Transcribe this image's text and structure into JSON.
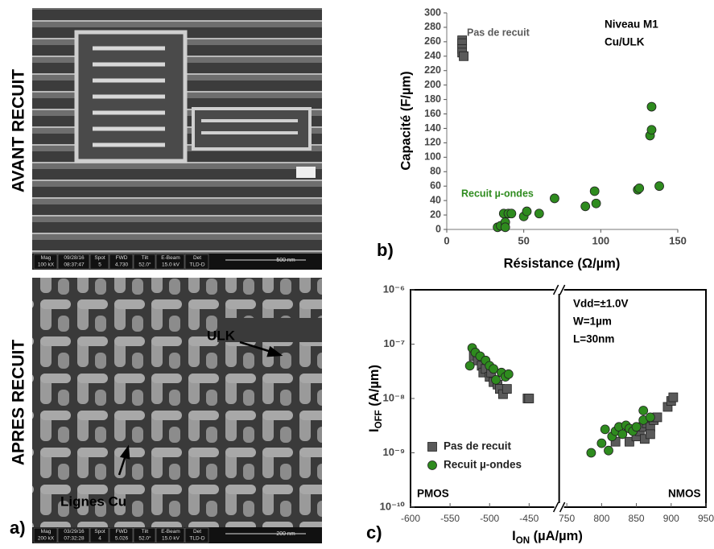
{
  "panel_label": "a)",
  "panels": [
    {
      "side_label": "AVANT RECUIT",
      "info": [
        {
          "h": "Mag",
          "v": "100 kX"
        },
        {
          "h": "09/28/16",
          "v": "08:37:47"
        },
        {
          "h": "Spot",
          "v": "5"
        },
        {
          "h": "FWD",
          "v": "4.730"
        },
        {
          "h": "Tilt",
          "v": "52.0°"
        },
        {
          "h": "E-Beam",
          "v": "15.0 kV"
        },
        {
          "h": "Det",
          "v": "TLD-D"
        }
      ],
      "scale": "500 nm",
      "annotations": []
    },
    {
      "side_label": "APRES RECUIT",
      "info": [
        {
          "h": "Mag",
          "v": "200 kX"
        },
        {
          "h": "03/29/16",
          "v": "07:32:28"
        },
        {
          "h": "Spot",
          "v": "4"
        },
        {
          "h": "FWD",
          "v": "5.026"
        },
        {
          "h": "Tilt",
          "v": "52.0°"
        },
        {
          "h": "E-Beam",
          "v": "15.0 kV"
        },
        {
          "h": "Det",
          "v": "TLD-D"
        }
      ],
      "scale": "200 nm",
      "annotations": [
        "ULK",
        "Lignes Cu"
      ]
    }
  ],
  "chart_data": [
    {
      "type": "scatter",
      "label": "b)",
      "xlabel": "Résistance (Ω/µm)",
      "ylabel": "Capacité (F/µm)",
      "xlim": [
        0,
        150
      ],
      "xticks": [
        0,
        50,
        100,
        150
      ],
      "ylim": [
        0,
        300
      ],
      "yticks": [
        0,
        20,
        40,
        60,
        80,
        100,
        120,
        140,
        160,
        180,
        200,
        220,
        240,
        260,
        280,
        300
      ],
      "box": false,
      "annotations": [
        "Niveau M1",
        "Cu/ULK"
      ],
      "series": [
        {
          "name": "Pas de recuit",
          "color": "#5a5a5a",
          "marker": "square",
          "x": [
            10,
            10,
            10,
            10,
            11
          ],
          "values": [
            262,
            258,
            250,
            245,
            240
          ]
        },
        {
          "name": "Recuit µ-ondes",
          "color": "#2e8b1e",
          "marker": "circle",
          "x": [
            33,
            35,
            37,
            38,
            38,
            40,
            42,
            50,
            52,
            60,
            70,
            90,
            96,
            97,
            124,
            125,
            132,
            133,
            133,
            138
          ],
          "values": [
            3,
            5,
            22,
            10,
            3,
            22,
            22,
            18,
            25,
            22,
            43,
            32,
            53,
            36,
            55,
            57,
            130,
            170,
            138,
            60
          ]
        }
      ]
    },
    {
      "type": "scatter",
      "label": "c)",
      "xlabel": {
        "main": "I",
        "sub": "ON",
        "unit": " (µA/µm)"
      },
      "ylabel": {
        "main": "I",
        "sub": "OFF",
        "unit": " (A/µm)"
      },
      "xlim": [
        -600,
        950
      ],
      "xbreak": [
        -412,
        739
      ],
      "xticks": [
        -600,
        -550,
        -500,
        -450,
        750,
        800,
        850,
        900,
        950
      ],
      "ylim": [
        1e-10,
        1e-06
      ],
      "ylog": true,
      "yticks": [
        {
          "value": 1e-10,
          "label": "10⁻¹⁰"
        },
        {
          "value": 1e-09,
          "label": "10⁻⁹"
        },
        {
          "value": 1e-08,
          "label": "10⁻⁸"
        },
        {
          "value": 1e-07,
          "label": "10⁻⁷"
        },
        {
          "value": 1e-06,
          "label": "10⁻⁶"
        }
      ],
      "box": true,
      "legend": "lower left",
      "annotations": [
        "Vdd=±1.0V",
        "W=1µm",
        "L=30nm",
        "PMOS",
        "NMOS"
      ],
      "series": [
        {
          "name": "Pas de recuit",
          "color": "#5a5a5a",
          "marker": "square",
          "x": [
            -520,
            -515,
            -510,
            -508,
            -505,
            -500,
            -498,
            -495,
            -490,
            -487,
            -483,
            -478,
            -452,
            -450,
            820,
            840,
            850,
            855,
            860,
            862,
            865,
            870,
            870,
            875,
            880,
            895,
            900,
            903
          ],
          "values": [
            6e-08,
            5e-08,
            4e-08,
            3e-08,
            3.5e-08,
            2.5e-08,
            3e-08,
            2e-08,
            1.8e-08,
            1.5e-08,
            1.2e-08,
            1.5e-08,
            1e-08,
            1e-08,
            1.6e-09,
            1.6e-09,
            2e-09,
            2.5e-09,
            3e-09,
            1.8e-09,
            3.5e-09,
            3e-09,
            2.2e-09,
            4e-09,
            4.5e-09,
            7e-09,
            9e-09,
            1.05e-08
          ]
        },
        {
          "name": "Recuit µ-ondes",
          "color": "#2e8b1e",
          "marker": "circle",
          "x": [
            -525,
            -522,
            -518,
            -512,
            -505,
            -500,
            -495,
            -492,
            -485,
            -480,
            -476,
            785,
            800,
            805,
            810,
            815,
            820,
            825,
            830,
            835,
            840,
            845,
            850,
            860,
            860,
            870
          ],
          "values": [
            4e-08,
            8.5e-08,
            7e-08,
            6e-08,
            5e-08,
            4e-08,
            3.5e-08,
            2.2e-08,
            3e-08,
            2.5e-08,
            2.8e-08,
            1e-09,
            1.5e-09,
            2.7e-09,
            1.1e-09,
            2e-09,
            2.5e-09,
            3e-09,
            2.2e-09,
            3.2e-09,
            2.8e-09,
            2.5e-09,
            3e-09,
            6e-09,
            4e-09,
            4.5e-09
          ]
        }
      ]
    }
  ]
}
